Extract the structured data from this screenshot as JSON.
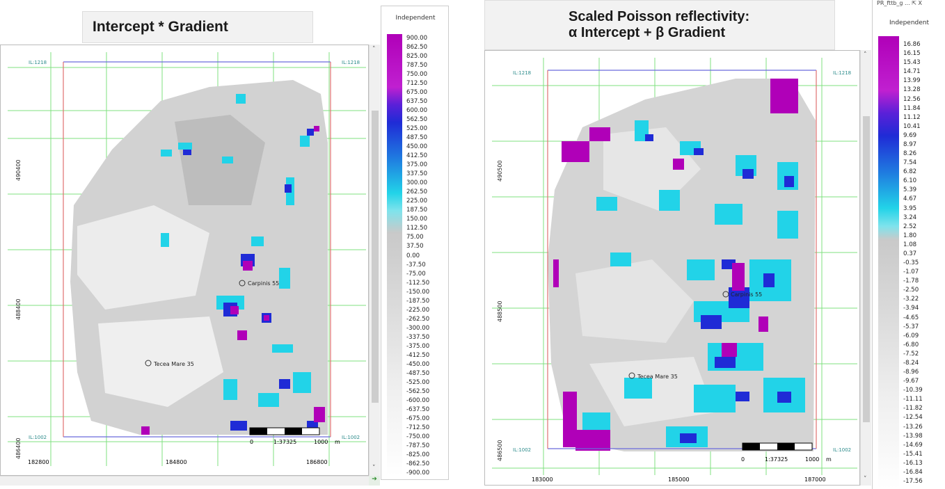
{
  "left": {
    "title": "Intercept * Gradient",
    "colorbar_title": "Independent",
    "colorbar_labels": [
      "900.00",
      "862.50",
      "825.00",
      "787.50",
      "750.00",
      "712.50",
      "675.00",
      "637.50",
      "600.00",
      "562.50",
      "525.00",
      "487.50",
      "450.00",
      "412.50",
      "375.00",
      "337.50",
      "300.00",
      "262.50",
      "225.00",
      "187.50",
      "150.00",
      "112.50",
      "75.00",
      "37.50",
      "0.00",
      "-37.50",
      "-75.00",
      "-112.50",
      "-150.00",
      "-187.50",
      "-225.00",
      "-262.50",
      "-300.00",
      "-337.50",
      "-375.00",
      "-412.50",
      "-450.00",
      "-487.50",
      "-525.00",
      "-562.50",
      "-600.00",
      "-637.50",
      "-675.00",
      "-712.50",
      "-750.00",
      "-787.50",
      "-825.00",
      "-862.50",
      "-900.00"
    ],
    "il_top": "IL:1218",
    "il_bottom": "IL:1002",
    "x_ticks": [
      "182800",
      "184800",
      "186800"
    ],
    "y_ticks": [
      "490400",
      "488400",
      "486400"
    ],
    "wells": [
      "Carpinis 55",
      "Tecea Mare 35"
    ],
    "scale_text": "1:37325",
    "scale_min": "0",
    "scale_max": "1000",
    "scale_unit": "m"
  },
  "right": {
    "title_line1": "Scaled Poisson reflectivity:",
    "title_line2": "α Intercept + β Gradient",
    "window_caption": "PR_fttb_g ... ⇱ X",
    "colorbar_title": "Independent",
    "colorbar_labels": [
      "16.86",
      "16.15",
      "15.43",
      "14.71",
      "13.99",
      "13.28",
      "12.56",
      "11.84",
      "11.12",
      "10.41",
      "9.69",
      "8.97",
      "8.26",
      "7.54",
      "6.82",
      "6.10",
      "5.39",
      "4.67",
      "3.95",
      "3.24",
      "2.52",
      "1.80",
      "1.08",
      "0.37",
      "-0.35",
      "-1.07",
      "-1.78",
      "-2.50",
      "-3.22",
      "-3.94",
      "-4.65",
      "-5.37",
      "-6.09",
      "-6.80",
      "-7.52",
      "-8.24",
      "-8.96",
      "-9.67",
      "-10.39",
      "-11.11",
      "-11.82",
      "-12.54",
      "-13.26",
      "-13.98",
      "-14.69",
      "-15.41",
      "-16.13",
      "-16.84",
      "-17.56"
    ],
    "il_top": "IL:1218",
    "il_bottom": "IL:1002",
    "x_ticks": [
      "183000",
      "185000",
      "187000"
    ],
    "y_ticks": [
      "490500",
      "488500",
      "486500"
    ],
    "wells": [
      "Carpinis 55",
      "Tecea Mare 35"
    ],
    "scale_text": "1:37325",
    "scale_min": "0",
    "scale_max": "1000",
    "scale_unit": "m"
  },
  "colors": {
    "grid": "#7fe07f",
    "il_line": "#6b6bdc",
    "border_line": "#e07070",
    "magenta": "#b000b8",
    "blue": "#1f2bd6",
    "cyan": "#22d3e8",
    "gray": "#c9c9c9"
  }
}
